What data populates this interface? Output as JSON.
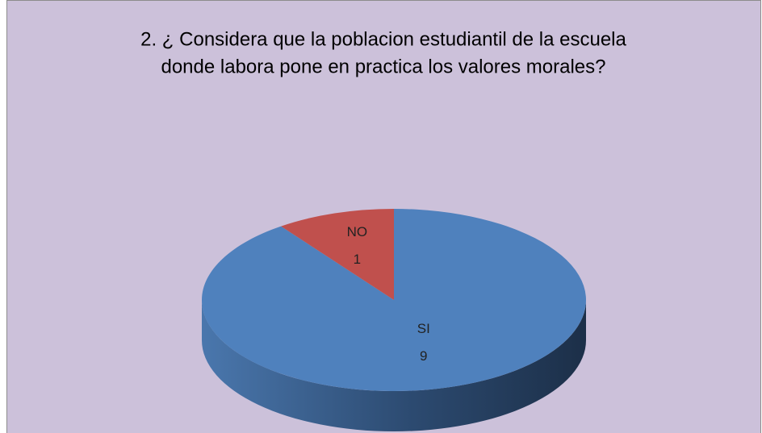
{
  "chart_data": {
    "type": "pie",
    "title": [
      "2. ¿ Considera que la poblacion estudiantil de la escuela",
      "donde labora pone en practica los valores morales?"
    ],
    "categories": [
      "SI",
      "NO"
    ],
    "values": [
      9,
      1
    ],
    "colors": [
      "#4f81bd",
      "#c0504d"
    ]
  }
}
